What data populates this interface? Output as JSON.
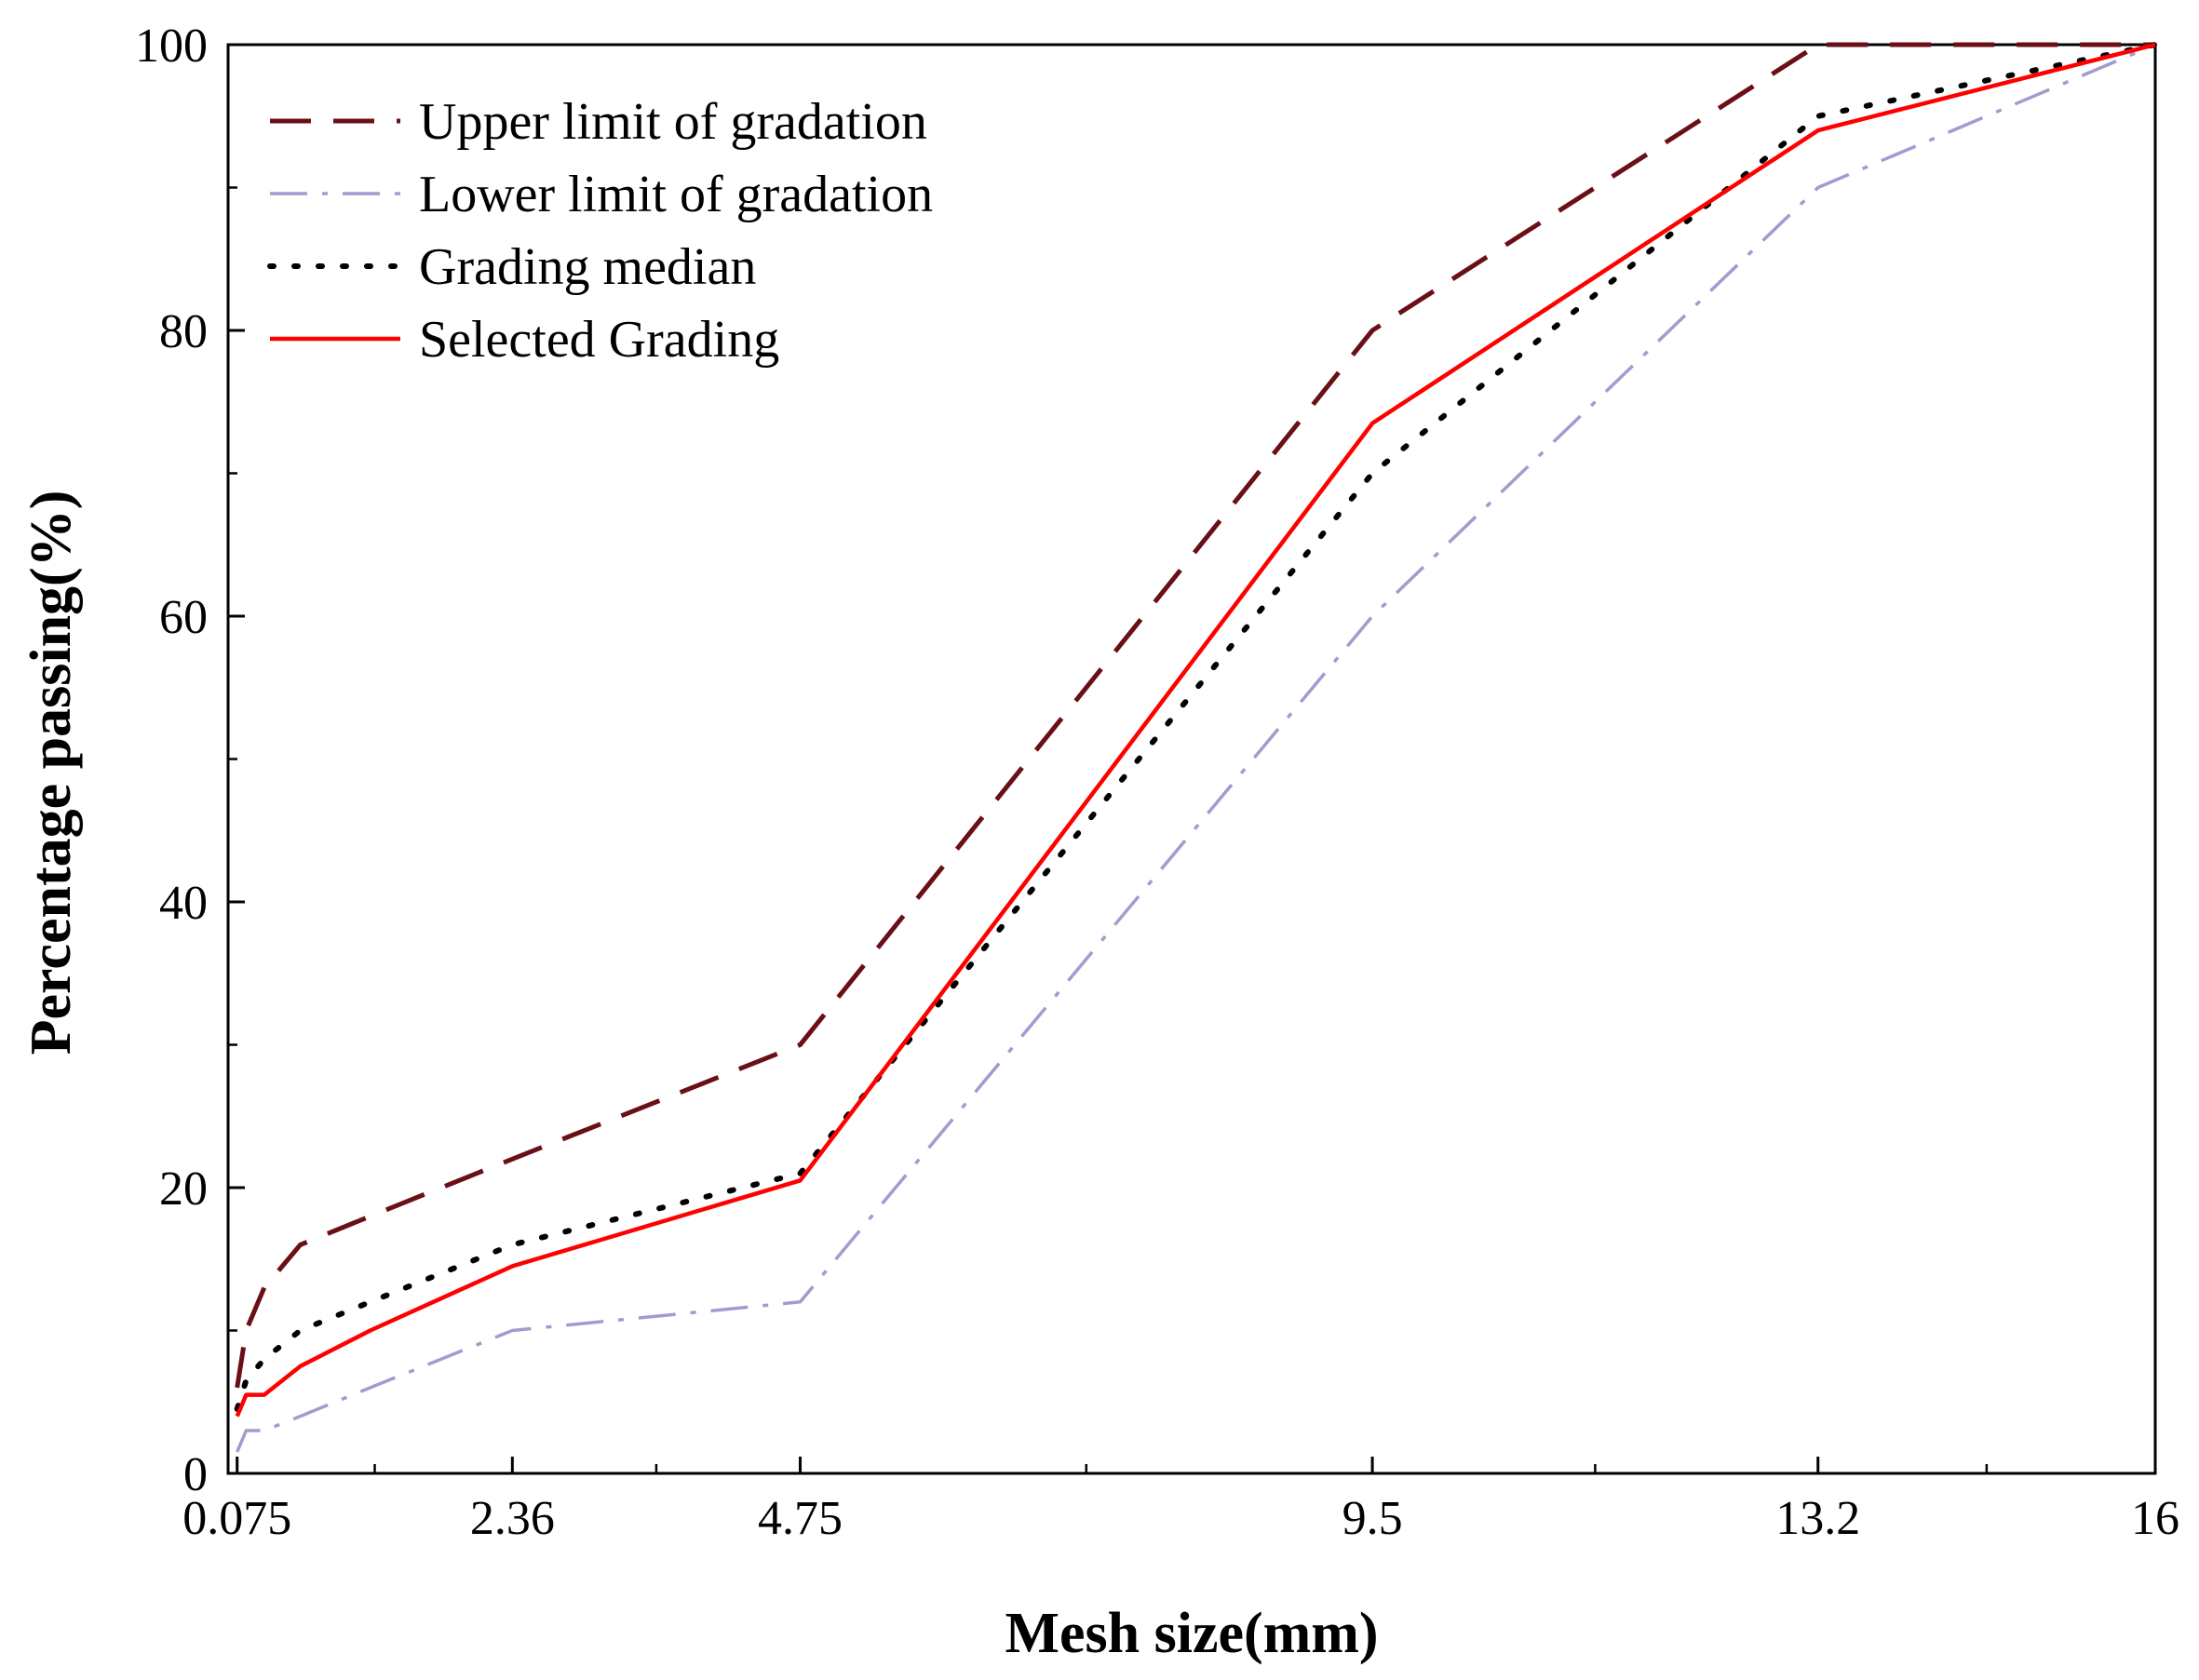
{
  "chart_data": {
    "type": "line",
    "title": "",
    "xlabel": "Mesh size(mm)",
    "ylabel": "Percentage passing(%)",
    "x_scale": "linear",
    "xlim": [
      0,
      16
    ],
    "ylim": [
      0,
      100
    ],
    "x_ticks": [
      "0.075",
      "2.36",
      "4.75",
      "9.5",
      "13.2",
      "16"
    ],
    "y_ticks": [
      "0",
      "20",
      "40",
      "60",
      "80",
      "100"
    ],
    "legend_position": "top-left",
    "grid": false,
    "series": [
      {
        "name": "Upper limit of gradation",
        "color": "#6b0f17",
        "style": "dashed",
        "x": [
          0.075,
          0.15,
          0.3,
          0.6,
          1.18,
          2.36,
          4.75,
          9.5,
          13.2,
          16
        ],
        "y": [
          6,
          10,
          13,
          16,
          18,
          22,
          30,
          80,
          100,
          100
        ]
      },
      {
        "name": "Lower limit of gradation",
        "color": "#a898d0",
        "style": "dash-dot",
        "x": [
          0.075,
          0.15,
          0.3,
          0.6,
          1.18,
          2.36,
          4.75,
          9.5,
          13.2,
          16
        ],
        "y": [
          1.5,
          3,
          3,
          4,
          6,
          10,
          12,
          60,
          90,
          100
        ]
      },
      {
        "name": "Grading median",
        "color": "#000000",
        "style": "dotted",
        "x": [
          0.075,
          0.15,
          0.3,
          0.6,
          1.18,
          2.36,
          4.75,
          9.5,
          13.2,
          16
        ],
        "y": [
          4.5,
          6.5,
          8,
          10,
          12,
          16,
          21,
          70,
          95,
          100
        ]
      },
      {
        "name": "Selected Grading",
        "color": "#ff0000",
        "style": "solid",
        "x": [
          0.075,
          0.15,
          0.3,
          0.6,
          1.18,
          2.36,
          4.75,
          9.5,
          13.2,
          16
        ],
        "y": [
          4,
          5.5,
          5.5,
          7.5,
          10,
          14.5,
          20.5,
          73.5,
          94,
          100
        ]
      }
    ]
  }
}
